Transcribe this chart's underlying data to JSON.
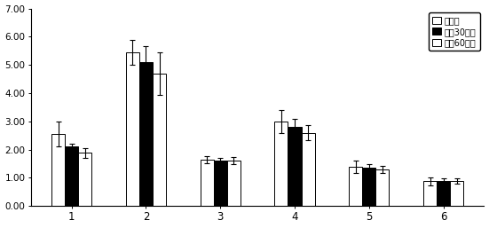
{
  "categories": [
    "1",
    "2",
    "3",
    "4",
    "5",
    "6"
  ],
  "series": [
    {
      "label": "试验前",
      "color": "white",
      "edgecolor": "black",
      "values": [
        2.55,
        5.45,
        1.65,
        3.0,
        1.4,
        0.88
      ],
      "errors": [
        0.45,
        0.45,
        0.12,
        0.4,
        0.22,
        0.14
      ]
    },
    {
      "label": "试验30天后",
      "color": "black",
      "edgecolor": "black",
      "values": [
        2.1,
        5.1,
        1.6,
        2.82,
        1.36,
        0.88
      ],
      "errors": [
        0.12,
        0.55,
        0.11,
        0.28,
        0.13,
        0.1
      ]
    },
    {
      "label": "试验60天后",
      "color": "white",
      "edgecolor": "black",
      "values": [
        1.88,
        4.7,
        1.6,
        2.6,
        1.3,
        0.88
      ],
      "errors": [
        0.18,
        0.75,
        0.13,
        0.28,
        0.13,
        0.1
      ]
    }
  ],
  "ylim": [
    0.0,
    7.0
  ],
  "yticks": [
    0.0,
    1.0,
    2.0,
    3.0,
    4.0,
    5.0,
    6.0,
    7.0
  ],
  "ytick_labels": [
    "0.00",
    "1.00",
    "2.00",
    "3.00",
    "4.00",
    "5.00",
    "6.00",
    "7.00"
  ],
  "bar_width": 0.18,
  "legend_pos": "upper right",
  "background_color": "white"
}
